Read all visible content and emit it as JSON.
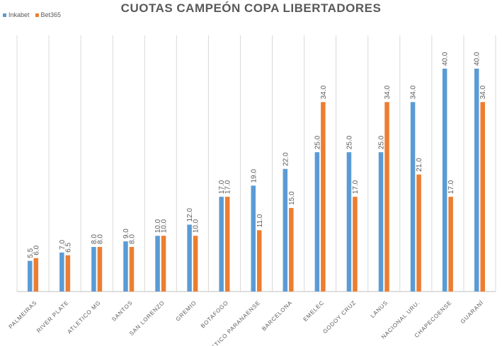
{
  "chart_data": {
    "type": "bar",
    "title": "CUOTAS CAMPEÓN COPA LIBERTADORES",
    "xlabel": "",
    "ylabel": "",
    "ylim": [
      0,
      44
    ],
    "grid": "vertical category separators",
    "legend_position": "top-left",
    "categories": [
      "PALMEIRAS",
      "RIVER PLATE",
      "ATLETICO MG",
      "SANTOS",
      "SAN LORENZO",
      "GREMIO",
      "BOTAFOGO",
      "ATLETICO PARANAENSE",
      "BARCELONA",
      "EMELEC",
      "GODOY CRUZ",
      "LANUS",
      "NACIONAL URU.",
      "CHAPECOENSE",
      "GUARANÍ"
    ],
    "series": [
      {
        "name": "Inkabet",
        "color": "#5B9BD5",
        "values": [
          5.5,
          7.0,
          8.0,
          9.0,
          10.0,
          12.0,
          17.0,
          19.0,
          22.0,
          25.0,
          25.0,
          25.0,
          34.0,
          40.0,
          40.0
        ]
      },
      {
        "name": "Bet365",
        "color": "#ED7D31",
        "values": [
          6.0,
          6.5,
          8.0,
          8.0,
          10.0,
          10.0,
          17.0,
          11.0,
          15.0,
          34.0,
          17.0,
          34.0,
          21.0,
          17.0,
          34.0
        ]
      }
    ]
  }
}
